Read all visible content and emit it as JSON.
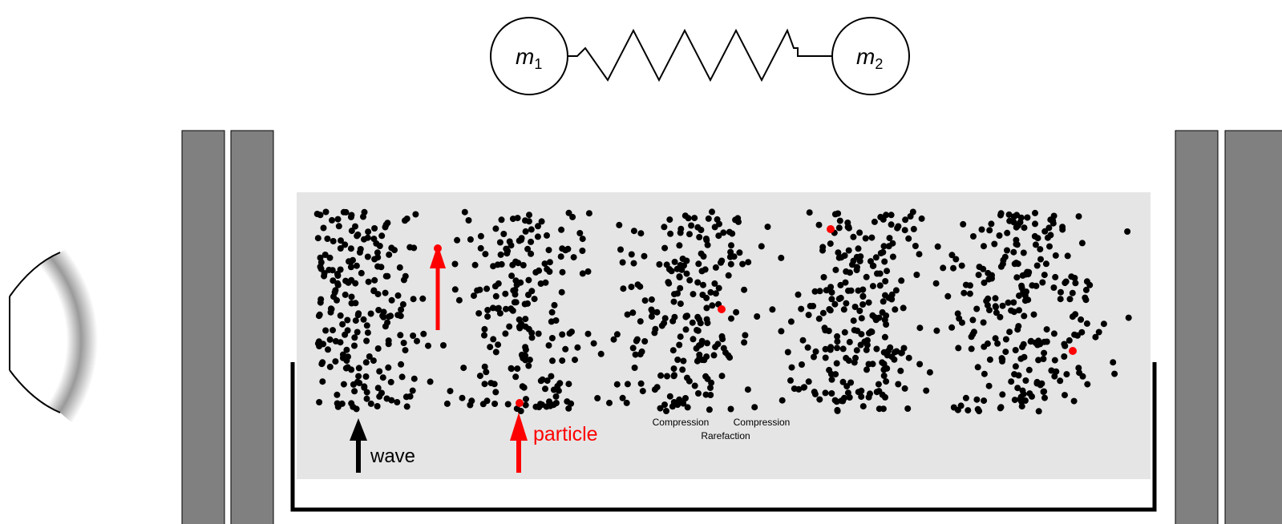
{
  "spring": {
    "masses": [
      {
        "symbol": "m",
        "subscript": "1"
      },
      {
        "symbol": "m",
        "subscript": "2"
      }
    ]
  },
  "labels": {
    "wave": "wave",
    "particle": "particle",
    "compression_left": "Compression",
    "compression_right": "Compression",
    "rarefaction": "Rarefaction"
  }
}
